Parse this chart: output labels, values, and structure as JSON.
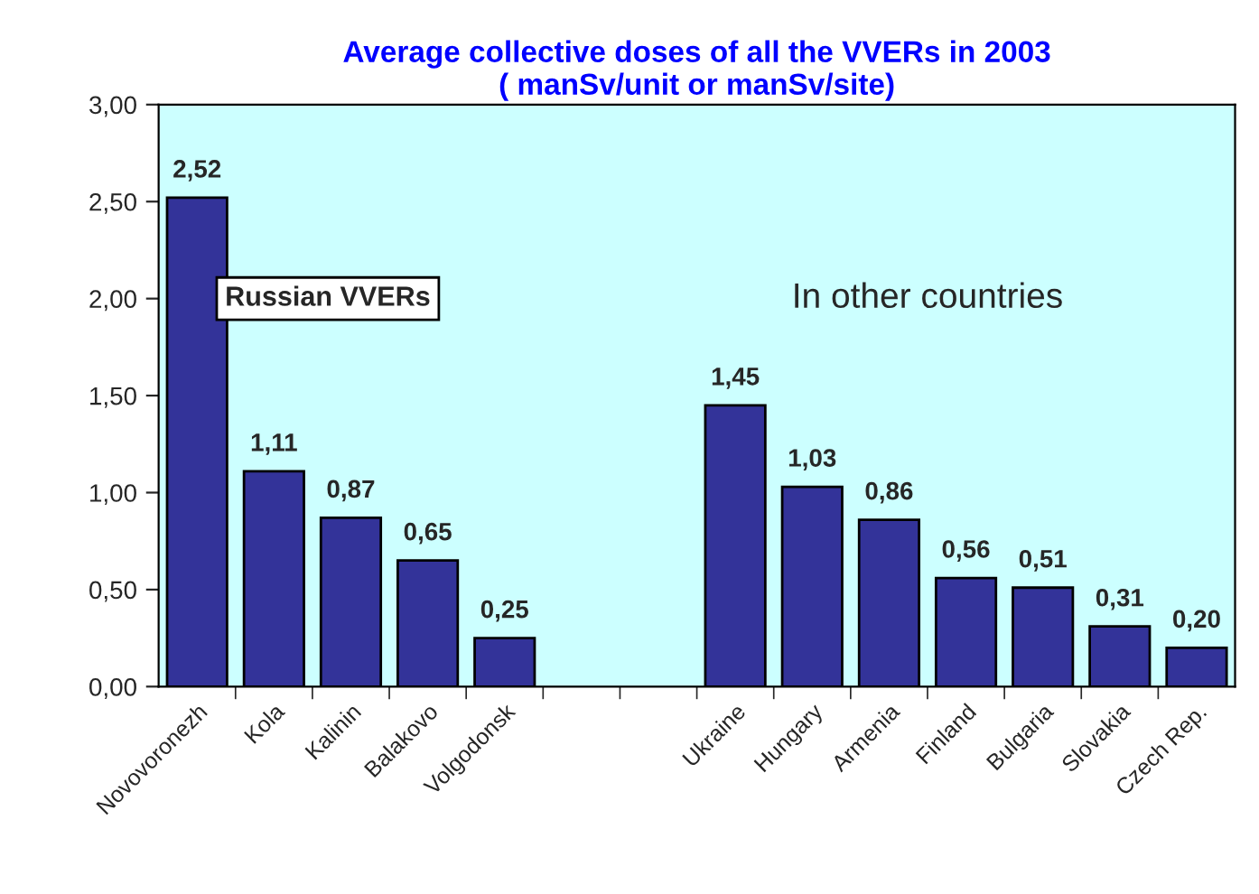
{
  "chart_data": {
    "type": "bar",
    "title": "Average collective doses of all the VVERs in 2003\n( manSv/unit or manSv/site)",
    "categories": [
      "Novovoronezh",
      "Kola",
      "Kalinin",
      "Balakovo",
      "Volgodonsk",
      null,
      null,
      "Ukraine",
      "Hungary",
      "Armenia",
      "Finland",
      "Bulgaria",
      "Slovakia",
      "Czech Rep."
    ],
    "values": [
      2.52,
      1.11,
      0.87,
      0.65,
      0.25,
      null,
      null,
      1.45,
      1.03,
      0.86,
      0.56,
      0.51,
      0.31,
      0.2
    ],
    "value_labels": [
      "2,52",
      "1,11",
      "0,87",
      "0,65",
      "0,25",
      null,
      null,
      "1,45",
      "1,03",
      "0,86",
      "0,56",
      "0,51",
      "0,31",
      "0,20"
    ],
    "color": "#333399",
    "ylim": [
      0,
      3
    ],
    "yticks": [
      {
        "value": 0,
        "label": "0,00"
      },
      {
        "value": 0.5,
        "label": "0,50"
      },
      {
        "value": 1,
        "label": "1,00"
      },
      {
        "value": 1.5,
        "label": "1,50"
      },
      {
        "value": 2,
        "label": "2,00"
      },
      {
        "value": 2.5,
        "label": "2,50"
      },
      {
        "value": 3,
        "label": "3,00"
      }
    ],
    "annotations": [
      "Russian VVERs",
      "In other countries"
    ],
    "grid": false,
    "legend": false
  }
}
